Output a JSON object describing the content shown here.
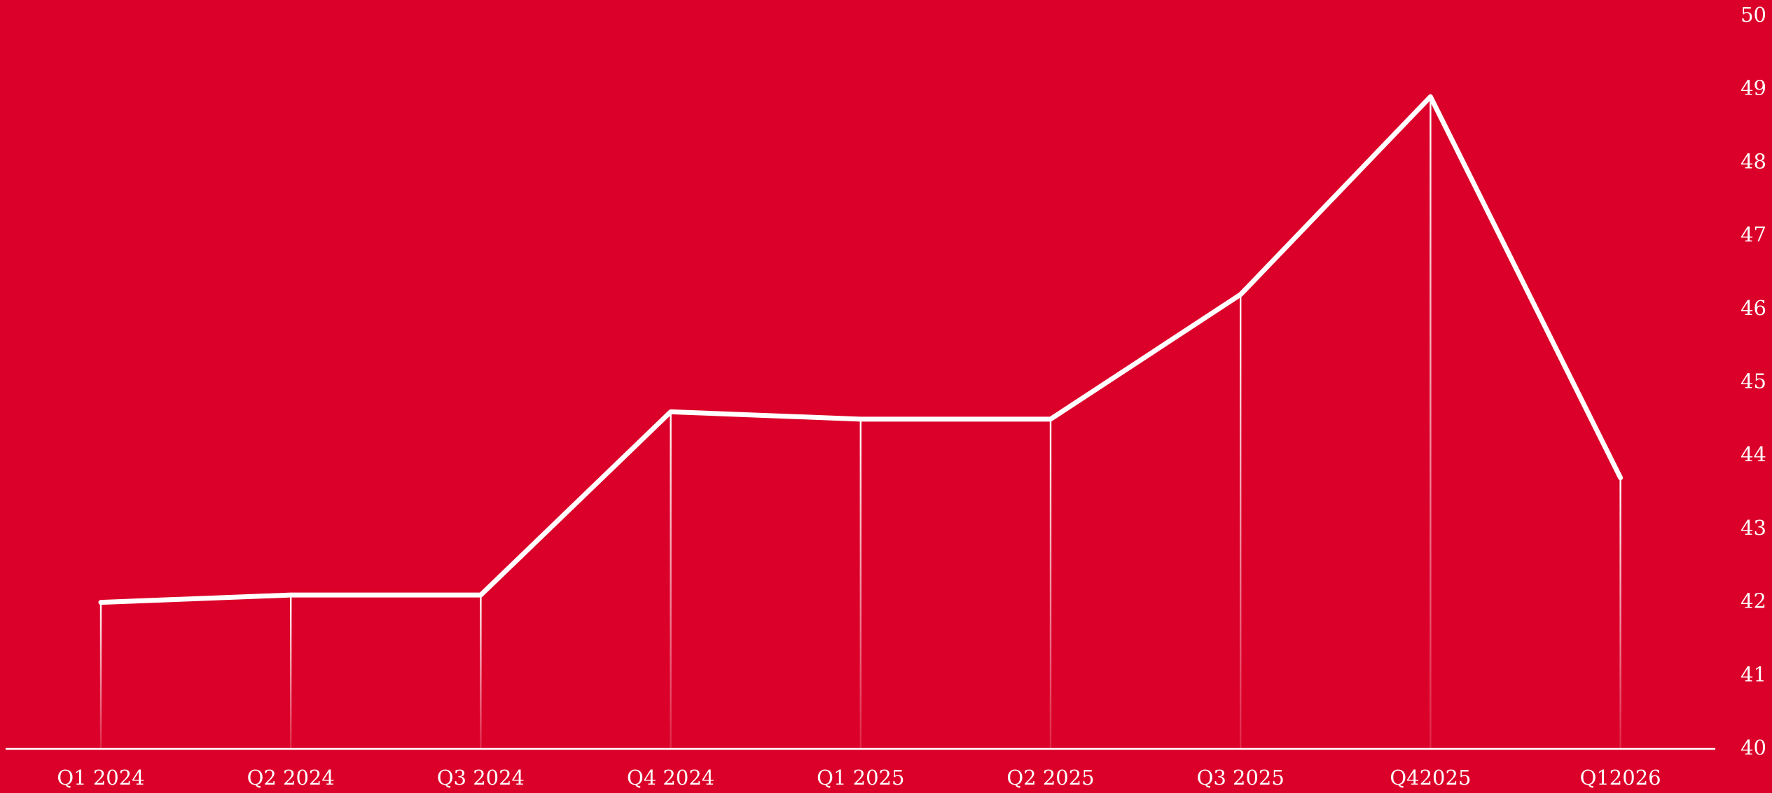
{
  "chart_data": {
    "type": "line",
    "categories": [
      "Q1 2024",
      "Q2 2024",
      "Q3 2024",
      "Q4 2024",
      "Q1 2025",
      "Q2 2025",
      "Q3 2025",
      "Q42025",
      "Q12026"
    ],
    "series": [
      {
        "color": "#ffffff",
        "values": [
          42.0,
          42.1,
          42.1,
          44.6,
          44.5,
          44.5,
          46.2,
          48.9,
          43.7
        ]
      }
    ],
    "ylim": [
      40,
      50
    ],
    "yticks": [
      40,
      41,
      42,
      43,
      44,
      45,
      46,
      47,
      48,
      49,
      50
    ],
    "background": "#db0029"
  }
}
